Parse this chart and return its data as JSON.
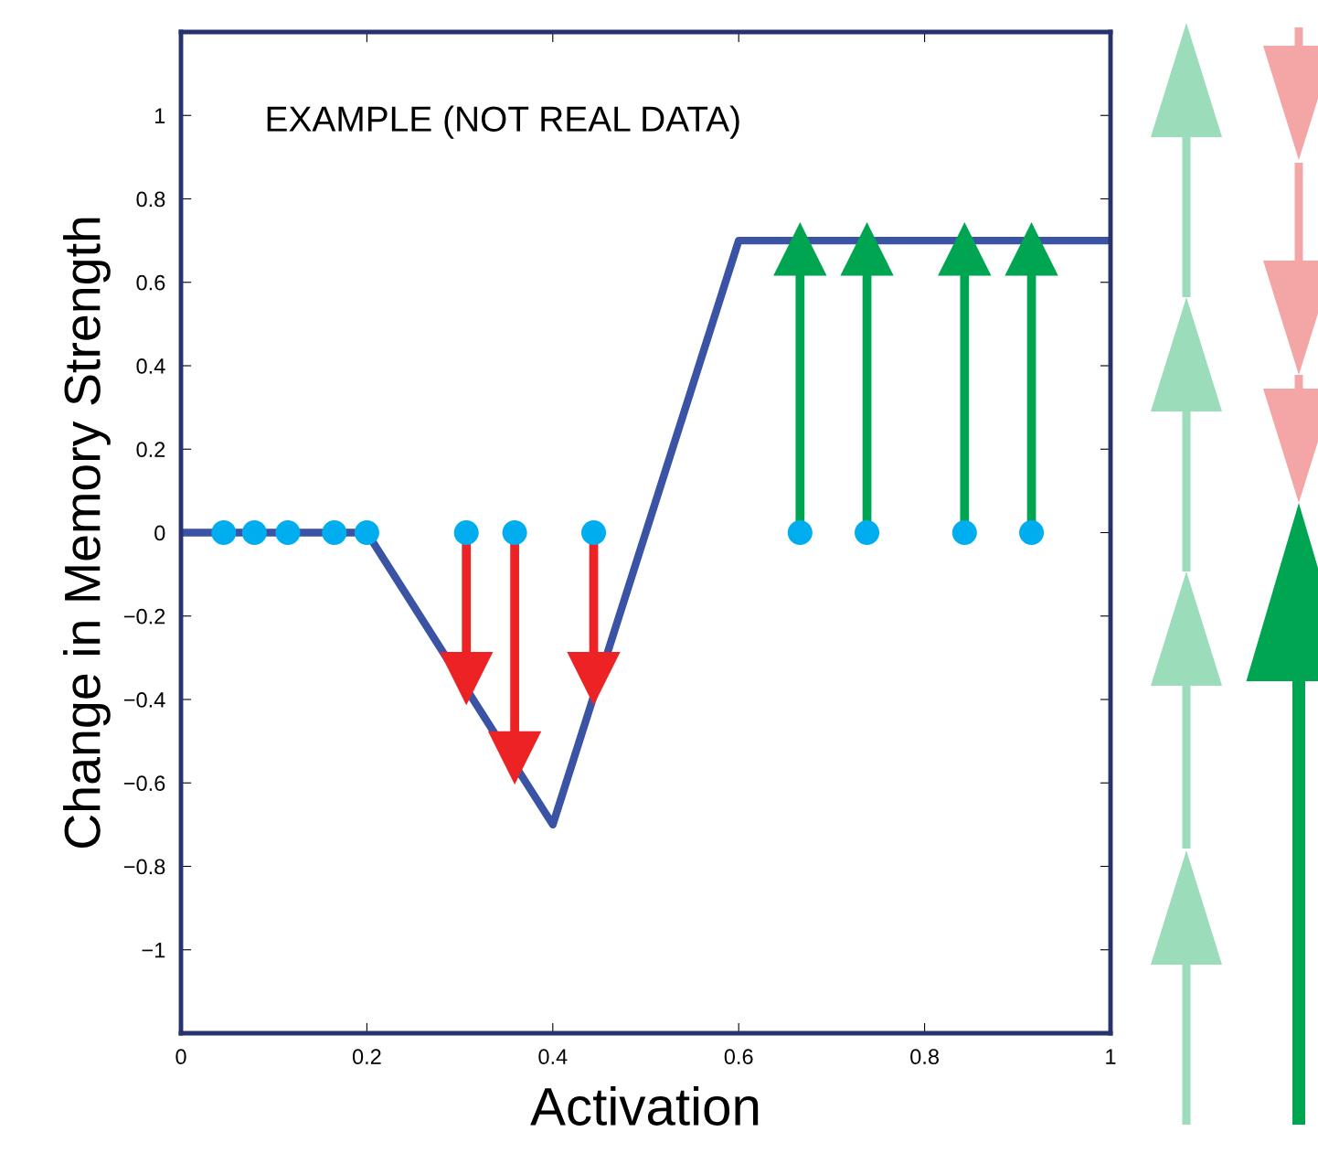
{
  "chart_data": {
    "type": "line",
    "xlabel": "Activation",
    "ylabel": "Change in Memory Strength",
    "annotations": [
      "EXAMPLE (NOT REAL DATA)"
    ],
    "series": [
      {
        "color": "#3a53a4",
        "x": [
          0,
          0.2,
          0.4,
          0.6,
          1
        ],
        "values": [
          0,
          0,
          -0.7,
          0.7,
          0.7
        ]
      },
      {
        "type": "lollipop",
        "marker": "triangle",
        "color": "#ed2224",
        "x": [
          0.307,
          0.359,
          0.444
        ],
        "values": [
          -0.35,
          -0.54,
          -0.35
        ]
      },
      {
        "type": "lollipop",
        "marker": "triangle",
        "color": "#00a551",
        "x": [
          0.666,
          0.738,
          0.843,
          0.915
        ],
        "values": [
          0.68,
          0.68,
          0.68,
          0.68
        ]
      },
      {
        "type": "scatter",
        "color": "#00aeef",
        "x": [
          0.046,
          0.079,
          0.115,
          0.165,
          0.2,
          0.307,
          0.359,
          0.444,
          0.666,
          0.738,
          0.843,
          0.915
        ],
        "values": [
          0,
          0,
          0,
          0,
          0,
          0,
          0,
          0,
          0,
          0,
          0,
          0
        ]
      }
    ],
    "xlim": [
      0,
      1
    ],
    "xticks": [
      0,
      0.2,
      0.4,
      0.6,
      0.8,
      1
    ],
    "ylim": [
      -1.2,
      1.2
    ],
    "yticks": [
      {
        "value": -1,
        "label": "−1"
      },
      {
        "value": -0.8,
        "label": "−0.8"
      },
      {
        "value": -0.6,
        "label": "−0.6"
      },
      {
        "value": -0.4,
        "label": "−0.4"
      },
      {
        "value": -0.2,
        "label": "−0.2"
      },
      0,
      0.2,
      0.4,
      0.6,
      0.8,
      1
    ],
    "grid": false,
    "legend": false
  }
}
